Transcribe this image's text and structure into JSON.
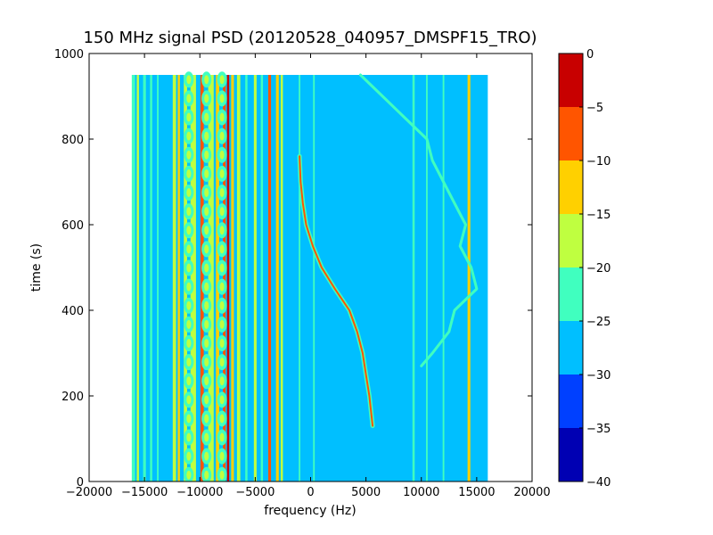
{
  "chart_data": {
    "type": "heatmap",
    "title": "150 MHz signal PSD (20120528_040957_DMSPF15_TRO)",
    "xlabel": "frequency (Hz)",
    "ylabel": "time (s)",
    "xlim": [
      -20000,
      20000
    ],
    "ylim": [
      0,
      1000
    ],
    "x_ticks": [
      -20000,
      -15000,
      -10000,
      -5000,
      0,
      5000,
      10000,
      15000,
      20000
    ],
    "y_ticks": [
      0,
      200,
      400,
      600,
      800,
      1000
    ],
    "data_extent": {
      "x": [
        -16000,
        16000
      ],
      "y": [
        0,
        950
      ]
    },
    "background_level": -27.5,
    "colorbar": {
      "range": [
        -40,
        0
      ],
      "ticks": [
        0,
        -5,
        -10,
        -15,
        -20,
        -25,
        -30,
        -35,
        -40
      ],
      "levels": [
        {
          "from": -40,
          "to": -35,
          "color": "#0000b3"
        },
        {
          "from": -35,
          "to": -30,
          "color": "#0040ff"
        },
        {
          "from": -30,
          "to": -25,
          "color": "#00bfff"
        },
        {
          "from": -25,
          "to": -20,
          "color": "#40ffbf"
        },
        {
          "from": -20,
          "to": -15,
          "color": "#bfff40"
        },
        {
          "from": -15,
          "to": -10,
          "color": "#ffd000"
        },
        {
          "from": -10,
          "to": -5,
          "color": "#ff5500"
        },
        {
          "from": -5,
          "to": 0,
          "color": "#c80000"
        }
      ]
    },
    "vertical_lines": [
      {
        "freq": -16000,
        "level": -22.5,
        "width": 300
      },
      {
        "freq": -15600,
        "level": -17.5,
        "width": 200
      },
      {
        "freq": -15000,
        "level": -22.5,
        "width": 250
      },
      {
        "freq": -14400,
        "level": -22.5,
        "width": 200
      },
      {
        "freq": -13800,
        "level": -22.5,
        "width": 150
      },
      {
        "freq": -12300,
        "level": -17.5,
        "width": 300
      },
      {
        "freq": -11900,
        "level": -12.5,
        "width": 200
      },
      {
        "freq": -11300,
        "level": -17.5,
        "width": 300
      },
      {
        "freq": -10600,
        "level": -17.5,
        "width": 500
      },
      {
        "freq": -9800,
        "level": -7.5,
        "width": 300
      },
      {
        "freq": -9000,
        "level": -17.5,
        "width": 500
      },
      {
        "freq": -8400,
        "level": -12.5,
        "width": 300
      },
      {
        "freq": -7800,
        "level": -7.5,
        "width": 250
      },
      {
        "freq": -7450,
        "level": -2.5,
        "width": 200
      },
      {
        "freq": -7050,
        "level": -12.5,
        "width": 250
      },
      {
        "freq": -6500,
        "level": -17.5,
        "width": 300
      },
      {
        "freq": -5800,
        "level": -22.5,
        "width": 200
      },
      {
        "freq": -5000,
        "level": -17.5,
        "width": 250
      },
      {
        "freq": -4400,
        "level": -22.5,
        "width": 200
      },
      {
        "freq": -3700,
        "level": -7.5,
        "width": 250
      },
      {
        "freq": -3000,
        "level": -12.5,
        "width": 250
      },
      {
        "freq": -2600,
        "level": -17.5,
        "width": 200
      },
      {
        "freq": -1000,
        "level": -22.5,
        "width": 150
      },
      {
        "freq": 300,
        "level": -22.5,
        "width": 150
      },
      {
        "freq": 9300,
        "level": -22.5,
        "width": 200
      },
      {
        "freq": 10500,
        "level": -22.5,
        "width": 150
      },
      {
        "freq": 12000,
        "level": -22.5,
        "width": 150
      },
      {
        "freq": 14300,
        "level": -12.5,
        "width": 250
      }
    ],
    "pulsating_columns": [
      -11000,
      -9400,
      -8000
    ],
    "doppler_curve": {
      "level": -7.5,
      "points": [
        {
          "t": 130,
          "f": 5600
        },
        {
          "t": 200,
          "f": 5300
        },
        {
          "t": 250,
          "f": 5000
        },
        {
          "t": 300,
          "f": 4700
        },
        {
          "t": 350,
          "f": 4200
        },
        {
          "t": 400,
          "f": 3500
        },
        {
          "t": 450,
          "f": 2200
        },
        {
          "t": 500,
          "f": 1000
        },
        {
          "t": 550,
          "f": 200
        },
        {
          "t": 600,
          "f": -400
        },
        {
          "t": 650,
          "f": -700
        },
        {
          "t": 700,
          "f": -900
        },
        {
          "t": 760,
          "f": -1000
        }
      ]
    },
    "drift_curves": [
      {
        "level": -22.5,
        "points": [
          {
            "t": 950,
            "f": 4500
          },
          {
            "t": 900,
            "f": 6500
          },
          {
            "t": 850,
            "f": 8500
          },
          {
            "t": 800,
            "f": 10500
          },
          {
            "t": 750,
            "f": 11000
          },
          {
            "t": 700,
            "f": 12000
          },
          {
            "t": 650,
            "f": 13000
          },
          {
            "t": 600,
            "f": 14000
          },
          {
            "t": 550,
            "f": 13500
          },
          {
            "t": 500,
            "f": 14500
          },
          {
            "t": 450,
            "f": 15000
          },
          {
            "t": 400,
            "f": 13000
          },
          {
            "t": 350,
            "f": 12500
          },
          {
            "t": 300,
            "f": 11000
          },
          {
            "t": 270,
            "f": 10000
          }
        ]
      }
    ]
  }
}
